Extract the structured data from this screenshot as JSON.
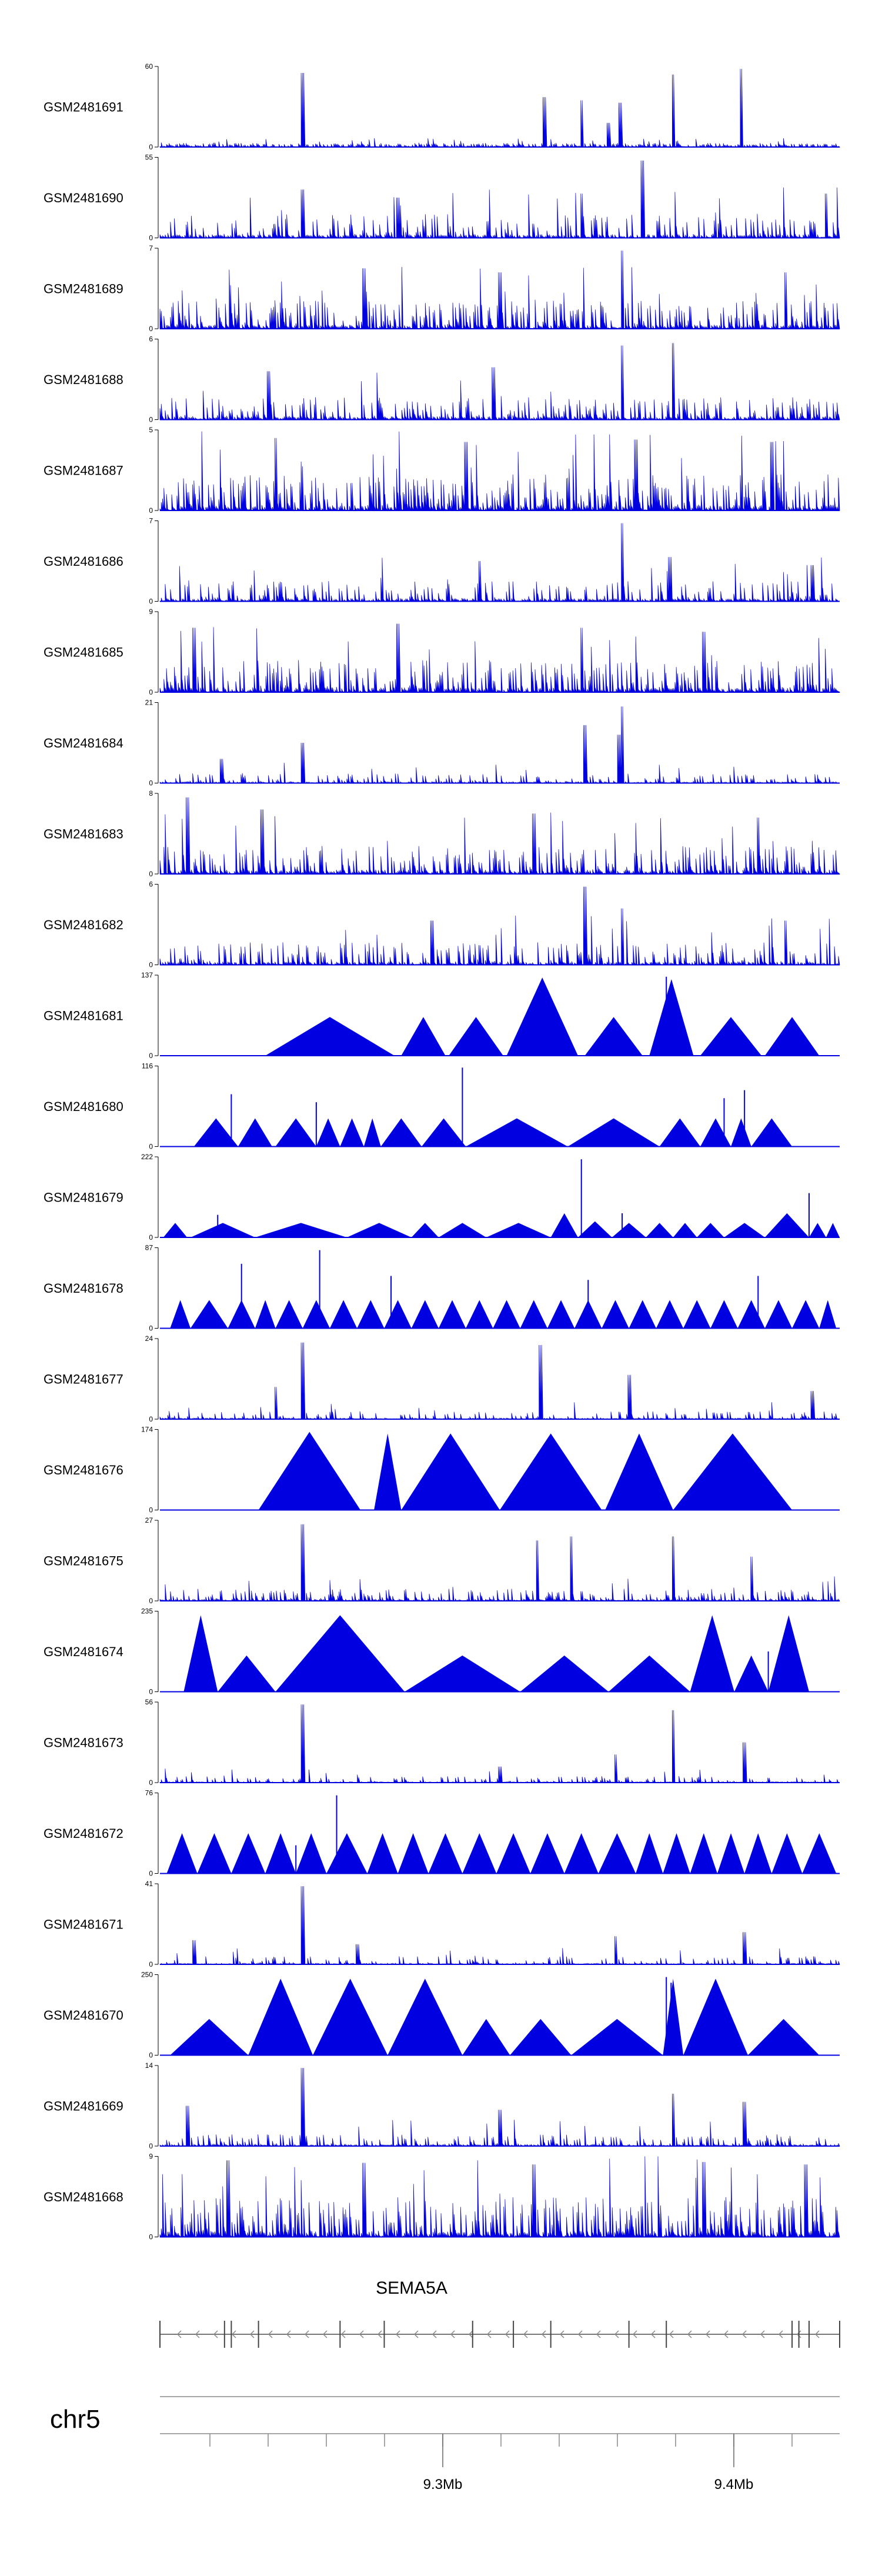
{
  "chart_data": {
    "type": "area",
    "title": "",
    "chromosome": "chr5",
    "gene": {
      "name": "SEMA5A",
      "strand": "-"
    },
    "genome_axis": {
      "ticks": [
        {
          "label": "9.3Mb",
          "value_mb": 9.3
        },
        {
          "label": "9.4Mb",
          "value_mb": 9.4
        }
      ],
      "minor_step_mb": 0.02
    },
    "tracks": [
      {
        "name": "GSM2481691",
        "ymax": "60",
        "ymin": "0",
        "style": "signal",
        "density": 0.85,
        "base": 0.05,
        "peaks": [
          [
            0.21,
            0.92
          ],
          [
            0.565,
            0.62
          ],
          [
            0.62,
            0.58
          ],
          [
            0.677,
            0.55
          ],
          [
            0.66,
            0.3
          ],
          [
            0.755,
            0.9
          ],
          [
            0.855,
            0.97
          ]
        ]
      },
      {
        "name": "GSM2481690",
        "ymax": "55",
        "ymin": "0",
        "style": "signal",
        "density": 0.35,
        "base": 0.3,
        "peaks": [
          [
            0.71,
            0.96
          ],
          [
            0.21,
            0.6
          ],
          [
            0.98,
            0.55
          ],
          [
            0.35,
            0.5
          ],
          [
            0.62,
            0.55
          ]
        ]
      },
      {
        "name": "GSM2481689",
        "ymax": "7",
        "ymin": "0",
        "style": "signal",
        "density": 0.5,
        "base": 0.35,
        "peaks": [
          [
            0.68,
            0.97
          ],
          [
            0.3,
            0.75
          ],
          [
            0.5,
            0.7
          ],
          [
            0.92,
            0.7
          ]
        ]
      },
      {
        "name": "GSM2481688",
        "ymax": "6",
        "ymin": "0",
        "style": "signal",
        "density": 0.45,
        "base": 0.28,
        "peaks": [
          [
            0.68,
            0.92
          ],
          [
            0.755,
            0.95
          ],
          [
            0.49,
            0.65
          ],
          [
            0.16,
            0.6
          ]
        ]
      },
      {
        "name": "GSM2481687",
        "ymax": "5",
        "ymin": "0",
        "style": "signal",
        "density": 0.55,
        "base": 0.45,
        "peaks": [
          [
            0.17,
            0.9
          ],
          [
            0.45,
            0.85
          ],
          [
            0.7,
            0.88
          ],
          [
            0.9,
            0.85
          ]
        ]
      },
      {
        "name": "GSM2481686",
        "ymax": "7",
        "ymin": "0",
        "style": "signal",
        "density": 0.4,
        "base": 0.25,
        "peaks": [
          [
            0.68,
            0.97
          ],
          [
            0.75,
            0.55
          ],
          [
            0.47,
            0.5
          ],
          [
            0.96,
            0.45
          ]
        ]
      },
      {
        "name": "GSM2481685",
        "ymax": "9",
        "ymin": "0",
        "style": "signal",
        "density": 0.5,
        "base": 0.4,
        "peaks": [
          [
            0.05,
            0.8
          ],
          [
            0.35,
            0.85
          ],
          [
            0.62,
            0.8
          ],
          [
            0.8,
            0.75
          ]
        ]
      },
      {
        "name": "GSM2481684",
        "ymax": "21",
        "ymin": "0",
        "style": "signal",
        "density": 0.3,
        "base": 0.12,
        "peaks": [
          [
            0.21,
            0.5
          ],
          [
            0.625,
            0.72
          ],
          [
            0.68,
            0.95
          ],
          [
            0.675,
            0.6
          ],
          [
            0.09,
            0.3
          ]
        ]
      },
      {
        "name": "GSM2481683",
        "ymax": "8",
        "ymin": "0",
        "style": "signal",
        "density": 0.45,
        "base": 0.35,
        "peaks": [
          [
            0.04,
            0.95
          ],
          [
            0.15,
            0.8
          ],
          [
            0.55,
            0.75
          ],
          [
            0.88,
            0.7
          ]
        ]
      },
      {
        "name": "GSM2481682",
        "ymax": "6",
        "ymin": "0",
        "style": "signal",
        "density": 0.4,
        "base": 0.28,
        "peaks": [
          [
            0.625,
            0.97
          ],
          [
            0.68,
            0.7
          ],
          [
            0.4,
            0.55
          ],
          [
            0.92,
            0.55
          ]
        ]
      },
      {
        "name": "GSM2481681",
        "ymax": "137",
        "ymin": "0",
        "style": "spans",
        "spans": [
          [
            0.155,
            0.345,
            0.48
          ],
          [
            0.355,
            0.42,
            0.48
          ],
          [
            0.425,
            0.505,
            0.48
          ],
          [
            0.51,
            0.615,
            0.97
          ],
          [
            0.625,
            0.71,
            0.48
          ],
          [
            0.72,
            0.785,
            0.95
          ],
          [
            0.795,
            0.885,
            0.48
          ],
          [
            0.89,
            0.97,
            0.48
          ]
        ],
        "spikes": [
          [
            0.745,
            0.98
          ]
        ]
      },
      {
        "name": "GSM2481680",
        "ymax": "116",
        "ymin": "0",
        "style": "spans",
        "spans": [
          [
            0.05,
            0.115,
            0.35
          ],
          [
            0.115,
            0.165,
            0.35
          ],
          [
            0.17,
            0.23,
            0.35
          ],
          [
            0.23,
            0.265,
            0.35
          ],
          [
            0.265,
            0.3,
            0.35
          ],
          [
            0.3,
            0.325,
            0.35
          ],
          [
            0.325,
            0.385,
            0.35
          ],
          [
            0.385,
            0.45,
            0.35
          ],
          [
            0.45,
            0.6,
            0.35
          ],
          [
            0.6,
            0.735,
            0.35
          ],
          [
            0.735,
            0.795,
            0.35
          ],
          [
            0.795,
            0.84,
            0.35
          ],
          [
            0.84,
            0.87,
            0.35
          ],
          [
            0.87,
            0.93,
            0.35
          ]
        ],
        "spikes": [
          [
            0.105,
            0.65
          ],
          [
            0.23,
            0.55
          ],
          [
            0.445,
            0.98
          ],
          [
            0.83,
            0.6
          ],
          [
            0.86,
            0.7
          ]
        ]
      },
      {
        "name": "GSM2481679",
        "ymax": "222",
        "ymin": "0",
        "style": "spans",
        "spans": [
          [
            0.005,
            0.04,
            0.18
          ],
          [
            0.045,
            0.14,
            0.18
          ],
          [
            0.14,
            0.275,
            0.18
          ],
          [
            0.275,
            0.37,
            0.18
          ],
          [
            0.37,
            0.41,
            0.18
          ],
          [
            0.41,
            0.48,
            0.18
          ],
          [
            0.48,
            0.575,
            0.18
          ],
          [
            0.575,
            0.615,
            0.3
          ],
          [
            0.615,
            0.665,
            0.2
          ],
          [
            0.665,
            0.715,
            0.18
          ],
          [
            0.715,
            0.755,
            0.18
          ],
          [
            0.755,
            0.79,
            0.18
          ],
          [
            0.79,
            0.83,
            0.18
          ],
          [
            0.83,
            0.89,
            0.18
          ],
          [
            0.89,
            0.955,
            0.3
          ],
          [
            0.955,
            0.98,
            0.18
          ],
          [
            0.98,
            1.0,
            0.18
          ]
        ],
        "spikes": [
          [
            0.62,
            0.97
          ],
          [
            0.085,
            0.28
          ],
          [
            0.955,
            0.55
          ],
          [
            0.68,
            0.3
          ]
        ]
      },
      {
        "name": "GSM2481678",
        "ymax": "87",
        "ymin": "0",
        "style": "spans",
        "spans": [
          [
            0.015,
            0.045,
            0.35
          ],
          [
            0.045,
            0.1,
            0.35
          ],
          [
            0.1,
            0.14,
            0.35
          ],
          [
            0.14,
            0.17,
            0.35
          ],
          [
            0.17,
            0.21,
            0.35
          ],
          [
            0.21,
            0.25,
            0.35
          ],
          [
            0.25,
            0.29,
            0.35
          ],
          [
            0.29,
            0.33,
            0.35
          ],
          [
            0.33,
            0.37,
            0.35
          ],
          [
            0.37,
            0.41,
            0.35
          ],
          [
            0.41,
            0.45,
            0.35
          ],
          [
            0.45,
            0.49,
            0.35
          ],
          [
            0.49,
            0.53,
            0.35
          ],
          [
            0.53,
            0.57,
            0.35
          ],
          [
            0.57,
            0.61,
            0.35
          ],
          [
            0.61,
            0.65,
            0.35
          ],
          [
            0.65,
            0.69,
            0.35
          ],
          [
            0.69,
            0.73,
            0.35
          ],
          [
            0.73,
            0.77,
            0.35
          ],
          [
            0.77,
            0.81,
            0.35
          ],
          [
            0.81,
            0.85,
            0.35
          ],
          [
            0.85,
            0.89,
            0.35
          ],
          [
            0.89,
            0.93,
            0.35
          ],
          [
            0.93,
            0.97,
            0.35
          ],
          [
            0.97,
            0.995,
            0.35
          ]
        ],
        "spikes": [
          [
            0.235,
            0.97
          ],
          [
            0.34,
            0.65
          ],
          [
            0.63,
            0.6
          ],
          [
            0.88,
            0.65
          ],
          [
            0.12,
            0.8
          ]
        ]
      },
      {
        "name": "GSM2481677",
        "ymax": "24",
        "ymin": "0",
        "style": "signal",
        "density": 0.3,
        "base": 0.1,
        "peaks": [
          [
            0.21,
            0.95
          ],
          [
            0.56,
            0.92
          ],
          [
            0.69,
            0.55
          ],
          [
            0.17,
            0.4
          ],
          [
            0.96,
            0.35
          ]
        ]
      },
      {
        "name": "GSM2481676",
        "ymax": "174",
        "ymin": "0",
        "style": "spans",
        "spans": [
          [
            0.145,
            0.295,
            0.97
          ],
          [
            0.315,
            0.355,
            0.95
          ],
          [
            0.355,
            0.5,
            0.95
          ],
          [
            0.5,
            0.65,
            0.95
          ],
          [
            0.655,
            0.755,
            0.95
          ],
          [
            0.755,
            0.93,
            0.95
          ]
        ]
      },
      {
        "name": "GSM2481675",
        "ymax": "27",
        "ymin": "0",
        "style": "signal",
        "density": 0.4,
        "base": 0.15,
        "peaks": [
          [
            0.21,
            0.95
          ],
          [
            0.555,
            0.75
          ],
          [
            0.605,
            0.8
          ],
          [
            0.755,
            0.8
          ],
          [
            0.87,
            0.55
          ]
        ]
      },
      {
        "name": "GSM2481674",
        "ymax": "235",
        "ymin": "0",
        "style": "spans",
        "spans": [
          [
            0.035,
            0.085,
            0.95
          ],
          [
            0.085,
            0.17,
            0.45
          ],
          [
            0.17,
            0.36,
            0.95
          ],
          [
            0.36,
            0.53,
            0.45
          ],
          [
            0.53,
            0.66,
            0.45
          ],
          [
            0.66,
            0.78,
            0.45
          ],
          [
            0.78,
            0.845,
            0.95
          ],
          [
            0.845,
            0.895,
            0.45
          ],
          [
            0.895,
            0.955,
            0.95
          ]
        ],
        "spikes": [
          [
            0.895,
            0.5
          ]
        ]
      },
      {
        "name": "GSM2481673",
        "ymax": "56",
        "ymin": "0",
        "style": "signal",
        "density": 0.28,
        "base": 0.08,
        "peaks": [
          [
            0.21,
            0.97
          ],
          [
            0.755,
            0.9
          ],
          [
            0.86,
            0.5
          ],
          [
            0.67,
            0.35
          ],
          [
            0.5,
            0.2
          ]
        ]
      },
      {
        "name": "GSM2481672",
        "ymax": "76",
        "ymin": "0",
        "style": "spans",
        "spans": [
          [
            0.01,
            0.055,
            0.5
          ],
          [
            0.055,
            0.105,
            0.5
          ],
          [
            0.105,
            0.155,
            0.5
          ],
          [
            0.155,
            0.2,
            0.5
          ],
          [
            0.2,
            0.245,
            0.5
          ],
          [
            0.245,
            0.305,
            0.5
          ],
          [
            0.305,
            0.35,
            0.5
          ],
          [
            0.35,
            0.395,
            0.5
          ],
          [
            0.395,
            0.445,
            0.5
          ],
          [
            0.445,
            0.495,
            0.5
          ],
          [
            0.495,
            0.545,
            0.5
          ],
          [
            0.545,
            0.595,
            0.5
          ],
          [
            0.595,
            0.645,
            0.5
          ],
          [
            0.645,
            0.7,
            0.5
          ],
          [
            0.7,
            0.74,
            0.5
          ],
          [
            0.74,
            0.78,
            0.5
          ],
          [
            0.78,
            0.82,
            0.5
          ],
          [
            0.82,
            0.86,
            0.5
          ],
          [
            0.86,
            0.9,
            0.5
          ],
          [
            0.9,
            0.945,
            0.5
          ],
          [
            0.945,
            0.995,
            0.5
          ]
        ],
        "spikes": [
          [
            0.26,
            0.97
          ],
          [
            0.2,
            0.35
          ]
        ]
      },
      {
        "name": "GSM2481671",
        "ymax": "41",
        "ymin": "0",
        "style": "signal",
        "density": 0.3,
        "base": 0.1,
        "peaks": [
          [
            0.21,
            0.97
          ],
          [
            0.86,
            0.4
          ],
          [
            0.67,
            0.35
          ],
          [
            0.05,
            0.3
          ],
          [
            0.29,
            0.25
          ]
        ]
      },
      {
        "name": "GSM2481670",
        "ymax": "250",
        "ymin": "0",
        "style": "spans",
        "spans": [
          [
            0.015,
            0.13,
            0.45
          ],
          [
            0.13,
            0.225,
            0.95
          ],
          [
            0.225,
            0.335,
            0.95
          ],
          [
            0.335,
            0.445,
            0.95
          ],
          [
            0.445,
            0.515,
            0.45
          ],
          [
            0.515,
            0.605,
            0.45
          ],
          [
            0.605,
            0.74,
            0.45
          ],
          [
            0.74,
            0.77,
            0.95
          ],
          [
            0.77,
            0.865,
            0.95
          ],
          [
            0.865,
            0.97,
            0.45
          ]
        ],
        "spikes": [
          [
            0.745,
            0.97
          ],
          [
            0.752,
            0.9
          ]
        ]
      },
      {
        "name": "GSM2481669",
        "ymax": "14",
        "ymin": "0",
        "style": "signal",
        "density": 0.35,
        "base": 0.15,
        "peaks": [
          [
            0.21,
            0.97
          ],
          [
            0.755,
            0.65
          ],
          [
            0.86,
            0.55
          ],
          [
            0.5,
            0.45
          ],
          [
            0.04,
            0.5
          ]
        ]
      },
      {
        "name": "GSM2481668",
        "ymax": "9",
        "ymin": "0",
        "style": "signal",
        "density": 0.55,
        "base": 0.5,
        "peaks": [
          [
            0.1,
            0.95
          ],
          [
            0.3,
            0.92
          ],
          [
            0.55,
            0.9
          ],
          [
            0.8,
            0.93
          ],
          [
            0.95,
            0.9
          ]
        ]
      }
    ],
    "xlabel": "",
    "ylabel": ""
  }
}
